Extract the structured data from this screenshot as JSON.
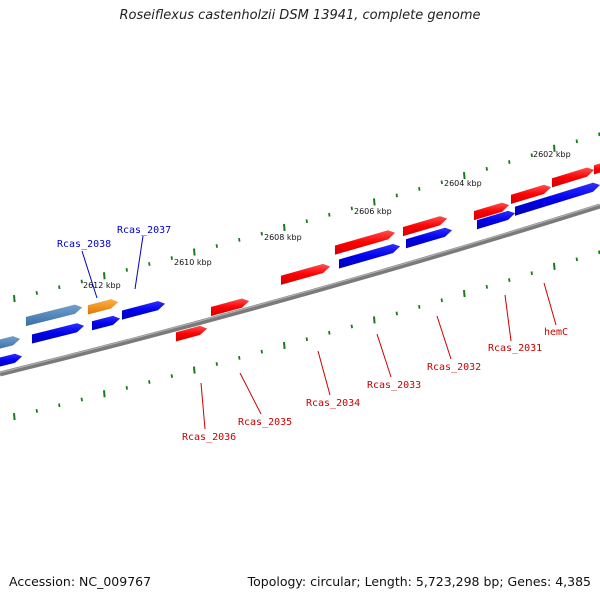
{
  "title": "Roseiflexus castenholzii DSM 13941, complete genome",
  "footer": {
    "accession": "Accession: NC_009767",
    "info": "Topology: circular; Length: 5,723,298 bp; Genes: 4,385"
  },
  "colors": {
    "forward_gene": "#ff0000",
    "reverse_gene": "#0000ee",
    "orange_gene": "#f28c00",
    "steel_gene": "#4a80b8",
    "backbone": "#808080",
    "tick": "#1a7a1a",
    "label_forward": "#cc0000",
    "label_reverse": "#0000cc"
  },
  "ticks": [
    {
      "label": "2602 kbp"
    },
    {
      "label": "2604 kbp"
    },
    {
      "label": "2606 kbp"
    },
    {
      "label": "2608 kbp"
    },
    {
      "label": "2610 kbp"
    },
    {
      "label": "2612 kbp"
    }
  ],
  "genes": {
    "reverse_labels": [
      {
        "name": "Rcas_2038"
      },
      {
        "name": "Rcas_2037"
      }
    ],
    "forward_labels": [
      {
        "name": "Rcas_2036"
      },
      {
        "name": "Rcas_2035"
      },
      {
        "name": "Rcas_2034"
      },
      {
        "name": "Rcas_2033"
      },
      {
        "name": "Rcas_2032"
      },
      {
        "name": "Rcas_2031"
      },
      {
        "name": "hemC"
      }
    ]
  }
}
